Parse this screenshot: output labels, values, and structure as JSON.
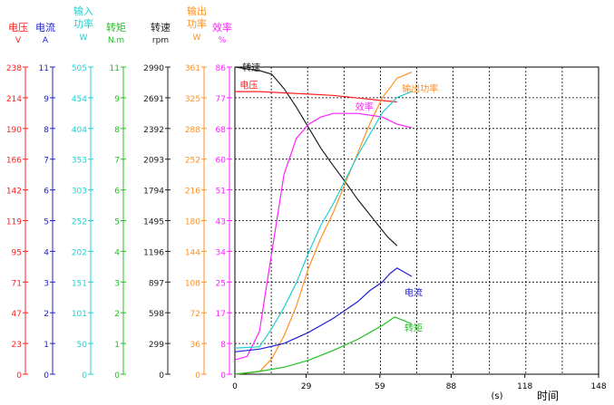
{
  "chart_data": {
    "type": "line",
    "xlabel": "时间",
    "xunit": "(s)",
    "x_ticks": [
      0,
      29,
      59,
      88,
      118,
      148
    ],
    "xlim": [
      0,
      148
    ],
    "grid": true,
    "axes": [
      {
        "key": "voltage",
        "name": "电压",
        "unit": "V",
        "color": "#ff2020",
        "max": 238,
        "ticks": [
          0,
          23,
          47,
          71,
          95,
          119,
          142,
          166,
          190,
          214,
          238
        ]
      },
      {
        "key": "current",
        "name": "电流",
        "unit": "A",
        "color": "#2020d0",
        "max": 11,
        "ticks": [
          0,
          1,
          2,
          3,
          4,
          5,
          6,
          7,
          8,
          9,
          11
        ]
      },
      {
        "key": "input_power",
        "name": "输入功率",
        "unit": "W",
        "color": "#20d0d0",
        "max": 505,
        "ticks": [
          0,
          50,
          101,
          151,
          202,
          252,
          303,
          353,
          404,
          454,
          505
        ]
      },
      {
        "key": "torque",
        "name": "转矩",
        "unit": "N.m",
        "color": "#20c020",
        "max": 11,
        "ticks": [
          0,
          1,
          2,
          3,
          4,
          5,
          6,
          7,
          8,
          9,
          11
        ]
      },
      {
        "key": "speed",
        "name": "转速",
        "unit": "rpm",
        "color": "#202020",
        "max": 2990,
        "ticks": [
          0,
          299,
          598,
          897,
          1196,
          1495,
          1794,
          2093,
          2392,
          2691,
          2990
        ]
      },
      {
        "key": "output_power",
        "name": "输出功率",
        "unit": "W",
        "color": "#ff9020",
        "max": 361,
        "ticks": [
          0,
          36,
          72,
          108,
          144,
          180,
          216,
          252,
          288,
          325,
          361
        ]
      },
      {
        "key": "efficiency",
        "name": "效率",
        "unit": "%",
        "color": "#ff20ff",
        "max": 86,
        "ticks": [
          0,
          8,
          17,
          25,
          34,
          43,
          51,
          60,
          68,
          77,
          86
        ]
      }
    ],
    "series": [
      {
        "axis": "speed",
        "name": "转速",
        "color": "#202020",
        "points": [
          [
            0,
            2990
          ],
          [
            10,
            2956
          ],
          [
            15,
            2920
          ],
          [
            20,
            2780
          ],
          [
            25,
            2600
          ],
          [
            30,
            2400
          ],
          [
            35,
            2200
          ],
          [
            40,
            2030
          ],
          [
            45,
            1870
          ],
          [
            50,
            1700
          ],
          [
            55,
            1550
          ],
          [
            60,
            1400
          ],
          [
            62,
            1340
          ],
          [
            66,
            1250
          ]
        ]
      },
      {
        "axis": "voltage",
        "name": "电压",
        "color": "#ff2020",
        "points": [
          [
            0,
            219
          ],
          [
            10,
            219
          ],
          [
            20,
            218
          ],
          [
            30,
            217
          ],
          [
            40,
            216
          ],
          [
            50,
            214
          ],
          [
            60,
            212
          ],
          [
            66,
            211
          ]
        ]
      },
      {
        "axis": "output_power",
        "name": "输出功率",
        "color": "#ff9020",
        "points": [
          [
            0,
            0
          ],
          [
            10,
            3
          ],
          [
            15,
            18
          ],
          [
            20,
            45
          ],
          [
            25,
            80
          ],
          [
            30,
            125
          ],
          [
            35,
            160
          ],
          [
            40,
            190
          ],
          [
            45,
            225
          ],
          [
            50,
            260
          ],
          [
            55,
            295
          ],
          [
            60,
            325
          ],
          [
            64,
            340
          ],
          [
            66,
            348
          ],
          [
            72,
            355
          ]
        ]
      },
      {
        "axis": "efficiency",
        "name": "效率",
        "color": "#ff20ff",
        "points": [
          [
            0,
            4
          ],
          [
            5,
            5
          ],
          [
            10,
            12
          ],
          [
            15,
            34
          ],
          [
            20,
            56
          ],
          [
            25,
            66
          ],
          [
            30,
            70
          ],
          [
            35,
            72
          ],
          [
            40,
            73
          ],
          [
            45,
            73
          ],
          [
            50,
            73
          ],
          [
            55,
            72.5
          ],
          [
            60,
            72
          ],
          [
            66,
            70
          ],
          [
            72,
            69
          ]
        ]
      },
      {
        "axis": "input_power",
        "name": "输入功率",
        "color": "#20d0d0",
        "points": [
          [
            0,
            43
          ],
          [
            10,
            45
          ],
          [
            15,
            75
          ],
          [
            20,
            110
          ],
          [
            25,
            150
          ],
          [
            30,
            200
          ],
          [
            35,
            245
          ],
          [
            40,
            280
          ],
          [
            45,
            320
          ],
          [
            50,
            360
          ],
          [
            55,
            395
          ],
          [
            60,
            430
          ],
          [
            66,
            455
          ],
          [
            72,
            465
          ]
        ]
      },
      {
        "axis": "current",
        "name": "电流",
        "color": "#2020d0",
        "points": [
          [
            0,
            0.8
          ],
          [
            10,
            0.9
          ],
          [
            20,
            1.1
          ],
          [
            30,
            1.5
          ],
          [
            40,
            2.0
          ],
          [
            50,
            2.6
          ],
          [
            55,
            3.0
          ],
          [
            60,
            3.3
          ],
          [
            63,
            3.6
          ],
          [
            66,
            3.8
          ],
          [
            72,
            3.5
          ]
        ]
      },
      {
        "axis": "torque",
        "name": "转矩",
        "color": "#20c020",
        "points": [
          [
            0,
            0
          ],
          [
            10,
            0.1
          ],
          [
            20,
            0.25
          ],
          [
            30,
            0.5
          ],
          [
            40,
            0.85
          ],
          [
            50,
            1.25
          ],
          [
            55,
            1.5
          ],
          [
            60,
            1.75
          ],
          [
            65,
            2.05
          ],
          [
            72,
            1.8
          ]
        ]
      }
    ],
    "annotations": [
      {
        "text": "转速",
        "color": "#202020",
        "x": 3,
        "y": 85
      },
      {
        "text": "电压",
        "color": "#ff2020",
        "x": 2,
        "y": 80
      },
      {
        "text": "输出功率",
        "color": "#ff9020",
        "x": 68,
        "y": 79
      },
      {
        "text": "效率",
        "color": "#ff20ff",
        "x": 49,
        "y": 74
      },
      {
        "text": "电流",
        "color": "#2020d0",
        "x": 69,
        "y": 22
      },
      {
        "text": "转矩",
        "color": "#20c020",
        "x": 69,
        "y": 12
      }
    ]
  }
}
